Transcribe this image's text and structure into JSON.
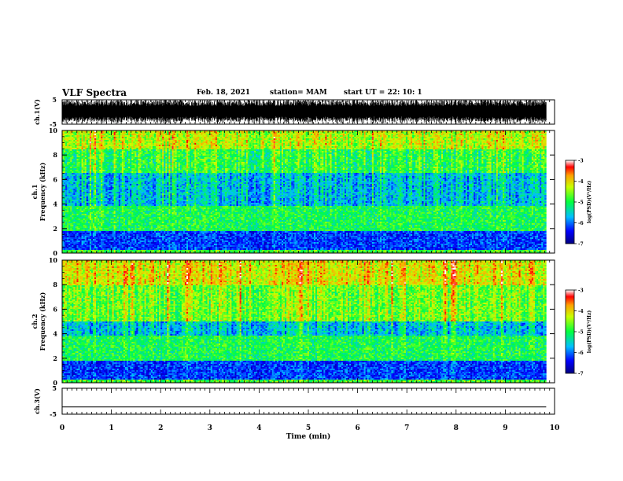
{
  "header": {
    "title": "VLF Spectra",
    "date": "Feb. 18, 2021",
    "station": "station= MAM",
    "start": "start  UT  =   22: 10: 1"
  },
  "chart_data": [
    {
      "type": "line",
      "name": "ch1-waveform",
      "ylabel": "ch.1(V)",
      "ylim": [
        -5,
        5
      ],
      "y_ticks": [
        "5",
        "-5"
      ],
      "note_style": "dense black waveform spanning nearly full range"
    },
    {
      "type": "heatmap",
      "name": "ch1-spectrogram",
      "ylabel": "ch.1\nFrequency  (kHz)",
      "ylabel_line1": "ch.1",
      "ylabel_line2": "Frequency  (kHz)",
      "xlim": [
        0,
        10
      ],
      "ylim": [
        0,
        10
      ],
      "y_ticks": [
        0,
        2,
        4,
        6,
        8,
        10
      ],
      "data_xmax": 9.83,
      "bands": [
        {
          "f": [
            0,
            0.3
          ],
          "level": -4.8
        },
        {
          "f": [
            0.3,
            1.8
          ],
          "level": -6.2
        },
        {
          "f": [
            1.8,
            3.8
          ],
          "level": -5.0
        },
        {
          "f": [
            3.8,
            6.5
          ],
          "level": -5.6
        },
        {
          "f": [
            6.5,
            8.5
          ],
          "level": -4.9
        },
        {
          "f": [
            8.5,
            10
          ],
          "level": -4.3
        }
      ],
      "colorbar": {
        "label": "log(PSD)(V²/Hz)",
        "range": [
          -7,
          -3
        ],
        "ticks": [
          "-3",
          "-4",
          "-5",
          "-6",
          "-7"
        ]
      }
    },
    {
      "type": "heatmap",
      "name": "ch2-spectrogram",
      "ylabel_line1": "ch.2",
      "ylabel_line2": "Frequency  (kHz)",
      "xlim": [
        0,
        10
      ],
      "ylim": [
        0,
        10
      ],
      "y_ticks": [
        0,
        2,
        4,
        6,
        8,
        10
      ],
      "data_xmax": 9.83,
      "bands": [
        {
          "f": [
            0,
            0.3
          ],
          "level": -4.8
        },
        {
          "f": [
            0.3,
            1.8
          ],
          "level": -6.2
        },
        {
          "f": [
            1.8,
            3.8
          ],
          "level": -5.0
        },
        {
          "f": [
            3.8,
            5.0
          ],
          "level": -5.6
        },
        {
          "f": [
            5.0,
            8.0
          ],
          "level": -4.6
        },
        {
          "f": [
            8.0,
            10
          ],
          "level": -4.1
        }
      ],
      "colorbar": {
        "label": "log(PSD)(V²/Hz)",
        "range": [
          -7,
          -3
        ],
        "ticks": [
          "-3",
          "-4",
          "-5",
          "-6",
          "-7"
        ]
      }
    },
    {
      "type": "line",
      "name": "ch3-waveform",
      "ylabel": "ch.3(V)",
      "ylim": [
        -5,
        5
      ],
      "y_ticks": [
        "5",
        "-5"
      ],
      "x": [
        0,
        9.83
      ],
      "y": [
        -2.2,
        -2.2
      ]
    }
  ],
  "x_axis": {
    "label": "Time  (min)",
    "range": [
      0,
      10
    ],
    "ticks": [
      "0",
      "1",
      "2",
      "3",
      "4",
      "5",
      "6",
      "7",
      "8",
      "9",
      "10"
    ]
  },
  "colors": {
    "text": "#000000",
    "background": "#ffffff"
  }
}
